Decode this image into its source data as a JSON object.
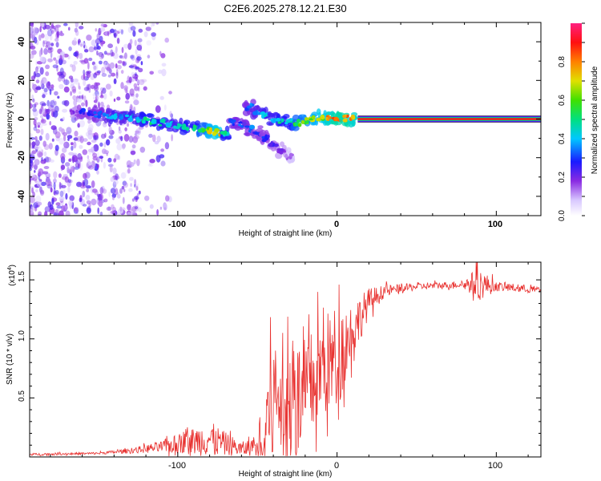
{
  "title": "C2E6.2025.278.12.21.E30",
  "chart_data": [
    {
      "type": "heatmap",
      "name": "spectrogram",
      "xlabel": "Height of straight line (km)",
      "ylabel": "Frequency (Hz)",
      "xlim": [
        -193,
        128
      ],
      "ylim": [
        -50,
        50
      ],
      "x_ticks": [
        -100,
        0,
        100
      ],
      "x_tick_labels": [
        "-100",
        "0",
        "100"
      ],
      "y_ticks": [
        -40,
        -20,
        0,
        20,
        40
      ],
      "y_tick_labels": [
        "-40",
        "-20",
        "0",
        "20",
        "40"
      ],
      "colorbar": {
        "label": "Normalized spectral amplitude",
        "range": [
          0,
          1
        ],
        "ticks": [
          0.0,
          0.2,
          0.4,
          0.6,
          0.8
        ],
        "tick_labels": [
          "0.0",
          "0.2",
          "0.4",
          "0.6",
          "0.8"
        ]
      },
      "ridge": [
        {
          "x": -165,
          "f": 4,
          "a": 0.2
        },
        {
          "x": -160,
          "f": 3.5,
          "a": 0.3
        },
        {
          "x": -155,
          "f": 3,
          "a": 0.3
        },
        {
          "x": -150,
          "f": 2.5,
          "a": 0.35
        },
        {
          "x": -145,
          "f": 2,
          "a": 0.4
        },
        {
          "x": -140,
          "f": 1.5,
          "a": 0.45
        },
        {
          "x": -135,
          "f": 1,
          "a": 0.4
        },
        {
          "x": -130,
          "f": 0.5,
          "a": 0.45
        },
        {
          "x": -125,
          "f": 0,
          "a": 0.45
        },
        {
          "x": -120,
          "f": -0.5,
          "a": 0.5
        },
        {
          "x": -115,
          "f": -1,
          "a": 0.5
        },
        {
          "x": -110,
          "f": -2,
          "a": 0.5
        },
        {
          "x": -105,
          "f": -3,
          "a": 0.45
        },
        {
          "x": -100,
          "f": -3.5,
          "a": 0.45
        },
        {
          "x": -95,
          "f": -4,
          "a": 0.5
        },
        {
          "x": -90,
          "f": -4.5,
          "a": 0.5
        },
        {
          "x": -85,
          "f": -5,
          "a": 0.6
        },
        {
          "x": -80,
          "f": -6,
          "a": 0.7
        },
        {
          "x": -75,
          "f": -7,
          "a": 0.75
        },
        {
          "x": -70,
          "f": -8,
          "a": 0.5
        },
        {
          "x": -65,
          "f": -2,
          "a": 0.35
        },
        {
          "x": -60,
          "f": -3,
          "a": 0.35
        },
        {
          "x": -55,
          "f": -5,
          "a": 0.35
        },
        {
          "x": -50,
          "f": -7,
          "a": 0.3
        },
        {
          "x": -45,
          "f": -10,
          "a": 0.3
        },
        {
          "x": -40,
          "f": -13,
          "a": 0.25
        },
        {
          "x": -35,
          "f": -16,
          "a": 0.2
        },
        {
          "x": -30,
          "f": -19,
          "a": 0.15
        },
        {
          "x": -55,
          "f": 6,
          "a": 0.35
        },
        {
          "x": -50,
          "f": 4,
          "a": 0.4
        },
        {
          "x": -45,
          "f": 2,
          "a": 0.45
        },
        {
          "x": -40,
          "f": 0,
          "a": 0.45
        },
        {
          "x": -35,
          "f": -1,
          "a": 0.5
        },
        {
          "x": -30,
          "f": -1.5,
          "a": 0.5
        },
        {
          "x": -25,
          "f": -2,
          "a": 0.6
        },
        {
          "x": -20,
          "f": -1,
          "a": 0.65
        },
        {
          "x": -15,
          "f": 0,
          "a": 0.7
        },
        {
          "x": -10,
          "f": 1,
          "a": 0.75
        },
        {
          "x": -5,
          "f": 0.5,
          "a": 0.8
        },
        {
          "x": 0,
          "f": 0,
          "a": 0.85
        },
        {
          "x": 5,
          "f": 0.5,
          "a": 0.85
        },
        {
          "x": 10,
          "f": 0,
          "a": 0.8
        }
      ],
      "steady_line": {
        "x_start": 13,
        "x_end": 128,
        "f": 0,
        "a": 0.95
      }
    },
    {
      "type": "line",
      "name": "snr",
      "xlabel": "Height of straight line (km)",
      "ylabel": "SNR (10 * v/v)",
      "multiplier": "(x10",
      "multiplier_exp": "4",
      "xlim": [
        -193,
        128
      ],
      "ylim": [
        0,
        1.65
      ],
      "x_ticks": [
        -100,
        0,
        100
      ],
      "x_tick_labels": [
        "-100",
        "0",
        "100"
      ],
      "y_ticks": [
        0.5,
        1.0,
        1.5
      ],
      "y_tick_labels": [
        "0.5",
        "1.0",
        "1.5"
      ],
      "color": "#e8302e",
      "envelope": [
        {
          "x": -193,
          "y": 0.02,
          "noise": 0.01
        },
        {
          "x": -150,
          "y": 0.03,
          "noise": 0.01
        },
        {
          "x": -130,
          "y": 0.05,
          "noise": 0.02
        },
        {
          "x": -110,
          "y": 0.08,
          "noise": 0.05
        },
        {
          "x": -90,
          "y": 0.12,
          "noise": 0.12
        },
        {
          "x": -80,
          "y": 0.14,
          "noise": 0.15
        },
        {
          "x": -70,
          "y": 0.1,
          "noise": 0.1
        },
        {
          "x": -60,
          "y": 0.06,
          "noise": 0.06
        },
        {
          "x": -50,
          "y": 0.08,
          "noise": 0.1
        },
        {
          "x": -45,
          "y": 0.25,
          "noise": 0.4
        },
        {
          "x": -38,
          "y": 0.45,
          "noise": 0.6
        },
        {
          "x": -30,
          "y": 0.4,
          "noise": 0.55
        },
        {
          "x": -20,
          "y": 0.45,
          "noise": 0.5
        },
        {
          "x": -10,
          "y": 0.7,
          "noise": 0.45
        },
        {
          "x": 0,
          "y": 0.8,
          "noise": 0.45
        },
        {
          "x": 10,
          "y": 1.05,
          "noise": 0.25
        },
        {
          "x": 20,
          "y": 1.3,
          "noise": 0.12
        },
        {
          "x": 30,
          "y": 1.4,
          "noise": 0.05
        },
        {
          "x": 50,
          "y": 1.44,
          "noise": 0.03
        },
        {
          "x": 80,
          "y": 1.46,
          "noise": 0.03
        },
        {
          "x": 88,
          "y": 1.45,
          "noise": 0.15
        },
        {
          "x": 100,
          "y": 1.44,
          "noise": 0.04
        },
        {
          "x": 128,
          "y": 1.41,
          "noise": 0.03
        }
      ]
    }
  ]
}
